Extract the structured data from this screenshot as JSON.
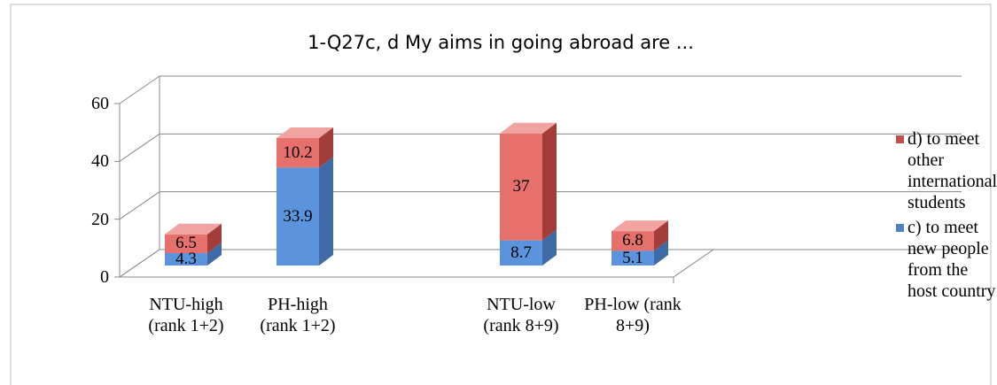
{
  "chart_data": {
    "type": "bar3d_stacked",
    "title": "1-Q27c, d  My aims in going abroad are ...",
    "categories": [
      "NTU-high (rank 1+2)",
      "PH-high (rank 1+2)",
      null,
      "NTU-low (rank 8+9)",
      "PH-low (rank 8+9)"
    ],
    "series": [
      {
        "name": "c) to meet new people from the host country",
        "color": "#4f81bd",
        "values": [
          4.3,
          33.9,
          null,
          8.7,
          5.1
        ]
      },
      {
        "name": "d) to meet other international students",
        "color": "#c0504d",
        "values": [
          6.5,
          10.2,
          null,
          37,
          6.8
        ]
      }
    ],
    "ylim": [
      0,
      60
    ],
    "yticks": [
      0,
      20,
      40,
      60
    ],
    "grid": true,
    "legend": "right"
  }
}
